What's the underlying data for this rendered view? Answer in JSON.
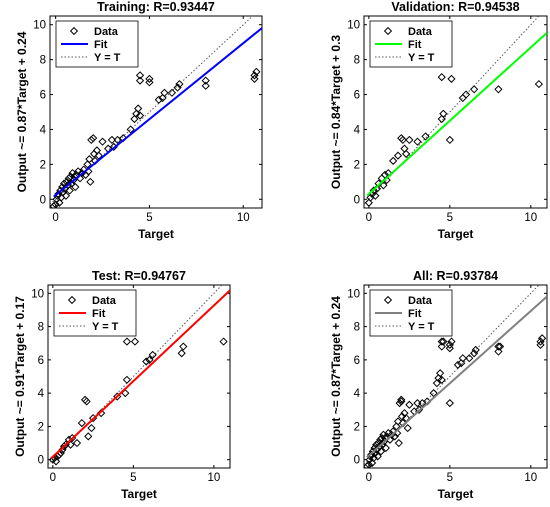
{
  "chart_data": [
    {
      "type": "scatter",
      "title": "Training: R=0.93447",
      "xlabel": "Target",
      "ylabel": "Output ~= 0.87*Target + 0.24",
      "xlim": [
        -0.3,
        11
      ],
      "ylim": [
        -0.5,
        10.5
      ],
      "xticks": [
        0,
        5,
        10
      ],
      "yticks": [
        0,
        2,
        4,
        6,
        8,
        10
      ],
      "fit": {
        "slope": 0.87,
        "intercept": 0.24,
        "color": "#0000ff"
      },
      "legend": {
        "placement": "top-left",
        "items": [
          "Data",
          "Fit",
          "Y = T"
        ]
      },
      "series": [
        {
          "name": "Data",
          "marker": "diamond",
          "points": [
            [
              -0.1,
              -0.4
            ],
            [
              0,
              -0.3
            ],
            [
              0.05,
              0
            ],
            [
              0.1,
              0.2
            ],
            [
              0.15,
              0.3
            ],
            [
              0.2,
              -0.2
            ],
            [
              0.25,
              0.5
            ],
            [
              0.3,
              0.1
            ],
            [
              0.35,
              0.7
            ],
            [
              0.4,
              0.4
            ],
            [
              0.45,
              0.9
            ],
            [
              0.5,
              0.6
            ],
            [
              0.55,
              0.2
            ],
            [
              0.6,
              1.0
            ],
            [
              0.65,
              0.8
            ],
            [
              0.7,
              1.2
            ],
            [
              0.75,
              0.5
            ],
            [
              0.8,
              1.3
            ],
            [
              0.85,
              0.9
            ],
            [
              0.9,
              1.5
            ],
            [
              0.95,
              1.1
            ],
            [
              1.0,
              1.3
            ],
            [
              1.05,
              0.7
            ],
            [
              1.1,
              1.4
            ],
            [
              1.2,
              1.6
            ],
            [
              1.3,
              1.2
            ],
            [
              1.4,
              1.5
            ],
            [
              1.5,
              1.7
            ],
            [
              1.6,
              1.4
            ],
            [
              1.7,
              2.0
            ],
            [
              1.75,
              1.6
            ],
            [
              1.8,
              2.3
            ],
            [
              1.85,
              1.0
            ],
            [
              1.9,
              3.4
            ],
            [
              2.0,
              3.5
            ],
            [
              2.05,
              2.6
            ],
            [
              2.1,
              2.2
            ],
            [
              2.2,
              2.8
            ],
            [
              2.3,
              2.5
            ],
            [
              2.5,
              3.3
            ],
            [
              2.8,
              2.9
            ],
            [
              3.0,
              3.4
            ],
            [
              3.1,
              3.0
            ],
            [
              3.3,
              3.4
            ],
            [
              3.6,
              3.5
            ],
            [
              4.0,
              4.0
            ],
            [
              4.2,
              4.6
            ],
            [
              4.3,
              4.9
            ],
            [
              4.4,
              5.2
            ],
            [
              4.5,
              4.8
            ],
            [
              4.5,
              6.8
            ],
            [
              4.5,
              7.1
            ],
            [
              5.0,
              6.7
            ],
            [
              5.0,
              6.9
            ],
            [
              5.5,
              5.7
            ],
            [
              5.7,
              5.8
            ],
            [
              5.8,
              6.1
            ],
            [
              6.2,
              6.1
            ],
            [
              6.5,
              6.4
            ],
            [
              6.6,
              6.6
            ],
            [
              8.0,
              6.5
            ],
            [
              8.0,
              6.8
            ],
            [
              10.6,
              6.9
            ],
            [
              10.6,
              7.1
            ],
            [
              10.7,
              7.3
            ]
          ]
        },
        {
          "name": "Fit"
        },
        {
          "name": "Y = T"
        }
      ]
    },
    {
      "type": "scatter",
      "title": "Validation: R=0.94538",
      "xlabel": "Target",
      "ylabel": "Output ~= 0.84*Target + 0.3",
      "xlim": [
        -0.3,
        11
      ],
      "ylim": [
        -0.5,
        10.5
      ],
      "xticks": [
        0,
        5,
        10
      ],
      "yticks": [
        0,
        2,
        4,
        6,
        8,
        10
      ],
      "fit": {
        "slope": 0.84,
        "intercept": 0.3,
        "color": "#00ff00"
      },
      "legend": {
        "placement": "top-left",
        "items": [
          "Data",
          "Fit",
          "Y = T"
        ]
      },
      "series": [
        {
          "name": "Data",
          "marker": "diamond",
          "points": [
            [
              0,
              -0.2
            ],
            [
              0.1,
              0.1
            ],
            [
              0.2,
              0.3
            ],
            [
              0.3,
              0.5
            ],
            [
              0.4,
              0.2
            ],
            [
              0.5,
              0.6
            ],
            [
              0.6,
              0.9
            ],
            [
              0.8,
              1.2
            ],
            [
              0.9,
              0.8
            ],
            [
              1.0,
              1.4
            ],
            [
              1.1,
              1.1
            ],
            [
              1.2,
              1.5
            ],
            [
              1.5,
              2.2
            ],
            [
              1.8,
              2.5
            ],
            [
              2.0,
              3.5
            ],
            [
              2.1,
              3.4
            ],
            [
              2.2,
              2.9
            ],
            [
              2.3,
              2.6
            ],
            [
              2.5,
              3.4
            ],
            [
              3.0,
              3.3
            ],
            [
              3.5,
              3.6
            ],
            [
              4.5,
              4.6
            ],
            [
              4.6,
              4.9
            ],
            [
              4.5,
              7.0
            ],
            [
              5.0,
              3.4
            ],
            [
              5.1,
              6.9
            ],
            [
              5.8,
              5.8
            ],
            [
              6.0,
              6.0
            ],
            [
              6.5,
              6.3
            ],
            [
              8.0,
              6.3
            ],
            [
              10.5,
              6.6
            ]
          ]
        },
        {
          "name": "Fit"
        },
        {
          "name": "Y = T"
        }
      ]
    },
    {
      "type": "scatter",
      "title": "Test: R=0.94767",
      "xlabel": "Target",
      "ylabel": "Output ~= 0.91*Target + 0.17",
      "xlim": [
        -0.3,
        11
      ],
      "ylim": [
        -0.5,
        10.5
      ],
      "xticks": [
        0,
        5,
        10
      ],
      "yticks": [
        0,
        2,
        4,
        6,
        8,
        10
      ],
      "fit": {
        "slope": 0.91,
        "intercept": 0.17,
        "color": "#ff0000"
      },
      "legend": {
        "placement": "top-left",
        "items": [
          "Data",
          "Fit",
          "Y = T"
        ]
      },
      "series": [
        {
          "name": "Data",
          "marker": "diamond",
          "points": [
            [
              0,
              0
            ],
            [
              0.1,
              0.1
            ],
            [
              0.2,
              -0.1
            ],
            [
              0.3,
              0.2
            ],
            [
              0.4,
              0.3
            ],
            [
              0.5,
              0.4
            ],
            [
              0.6,
              0.6
            ],
            [
              0.7,
              0.8
            ],
            [
              0.8,
              0.9
            ],
            [
              1.0,
              1.2
            ],
            [
              1.1,
              0.9
            ],
            [
              1.2,
              1.3
            ],
            [
              1.5,
              1.0
            ],
            [
              1.8,
              2.2
            ],
            [
              2.0,
              3.6
            ],
            [
              2.1,
              3.5
            ],
            [
              2.2,
              1.4
            ],
            [
              2.4,
              1.9
            ],
            [
              2.5,
              2.5
            ],
            [
              3.0,
              2.8
            ],
            [
              4.0,
              3.8
            ],
            [
              4.5,
              4.0
            ],
            [
              4.6,
              4.8
            ],
            [
              4.6,
              7.1
            ],
            [
              5.1,
              7.1
            ],
            [
              5.8,
              5.9
            ],
            [
              6.0,
              6.0
            ],
            [
              6.2,
              6.3
            ],
            [
              8.0,
              6.4
            ],
            [
              8.1,
              6.8
            ],
            [
              10.6,
              7.1
            ]
          ]
        },
        {
          "name": "Fit"
        },
        {
          "name": "Y = T"
        }
      ]
    },
    {
      "type": "scatter",
      "title": "All: R=0.93784",
      "xlabel": "Target",
      "ylabel": "Output ~= 0.87*Target + 0.24",
      "xlim": [
        -0.3,
        11
      ],
      "ylim": [
        -0.5,
        10.5
      ],
      "xticks": [
        0,
        5,
        10
      ],
      "yticks": [
        0,
        2,
        4,
        6,
        8,
        10
      ],
      "fit": {
        "slope": 0.87,
        "intercept": 0.24,
        "color": "#7f7f7f"
      },
      "legend": {
        "placement": "top-left",
        "items": [
          "Data",
          "Fit",
          "Y = T"
        ]
      },
      "series": [
        {
          "name": "Data",
          "marker": "diamond",
          "points": [
            [
              -0.1,
              -0.4
            ],
            [
              0,
              -0.3
            ],
            [
              0.05,
              0
            ],
            [
              0.1,
              0.2
            ],
            [
              0.15,
              0.3
            ],
            [
              0.2,
              -0.2
            ],
            [
              0.25,
              0.5
            ],
            [
              0.3,
              0.1
            ],
            [
              0.35,
              0.7
            ],
            [
              0.4,
              0.4
            ],
            [
              0.45,
              0.9
            ],
            [
              0.5,
              0.6
            ],
            [
              0.55,
              0.2
            ],
            [
              0.6,
              1.0
            ],
            [
              0.65,
              0.8
            ],
            [
              0.7,
              1.2
            ],
            [
              0.75,
              0.5
            ],
            [
              0.8,
              1.3
            ],
            [
              0.85,
              0.9
            ],
            [
              0.9,
              1.5
            ],
            [
              0.95,
              1.1
            ],
            [
              1.0,
              1.3
            ],
            [
              1.05,
              0.7
            ],
            [
              1.1,
              1.4
            ],
            [
              1.2,
              1.6
            ],
            [
              1.3,
              1.2
            ],
            [
              1.4,
              1.5
            ],
            [
              1.5,
              1.7
            ],
            [
              1.6,
              1.4
            ],
            [
              1.7,
              2.0
            ],
            [
              1.75,
              1.6
            ],
            [
              1.8,
              2.3
            ],
            [
              1.85,
              1.0
            ],
            [
              1.9,
              3.4
            ],
            [
              2.0,
              3.5
            ],
            [
              2.05,
              2.6
            ],
            [
              2.1,
              2.2
            ],
            [
              2.2,
              2.8
            ],
            [
              2.3,
              2.5
            ],
            [
              2.5,
              3.3
            ],
            [
              2.8,
              2.9
            ],
            [
              3.0,
              3.4
            ],
            [
              3.1,
              3.0
            ],
            [
              3.3,
              3.4
            ],
            [
              3.6,
              3.5
            ],
            [
              4.0,
              4.0
            ],
            [
              4.2,
              4.6
            ],
            [
              4.3,
              4.9
            ],
            [
              4.4,
              5.2
            ],
            [
              4.5,
              4.8
            ],
            [
              4.5,
              6.8
            ],
            [
              4.5,
              7.1
            ],
            [
              5.0,
              6.7
            ],
            [
              5.0,
              6.9
            ],
            [
              5.5,
              5.7
            ],
            [
              5.7,
              5.8
            ],
            [
              5.8,
              6.1
            ],
            [
              6.2,
              6.1
            ],
            [
              6.5,
              6.4
            ],
            [
              6.6,
              6.6
            ],
            [
              8.0,
              6.5
            ],
            [
              8.0,
              6.8
            ],
            [
              10.6,
              6.9
            ],
            [
              10.6,
              7.1
            ],
            [
              10.7,
              7.3
            ],
            [
              2.0,
              3.6
            ],
            [
              2.4,
              1.9
            ],
            [
              4.6,
              7.1
            ],
            [
              5.1,
              7.1
            ],
            [
              8.1,
              6.8
            ],
            [
              5.0,
              3.4
            ]
          ]
        },
        {
          "name": "Fit"
        },
        {
          "name": "Y = T"
        }
      ]
    }
  ]
}
